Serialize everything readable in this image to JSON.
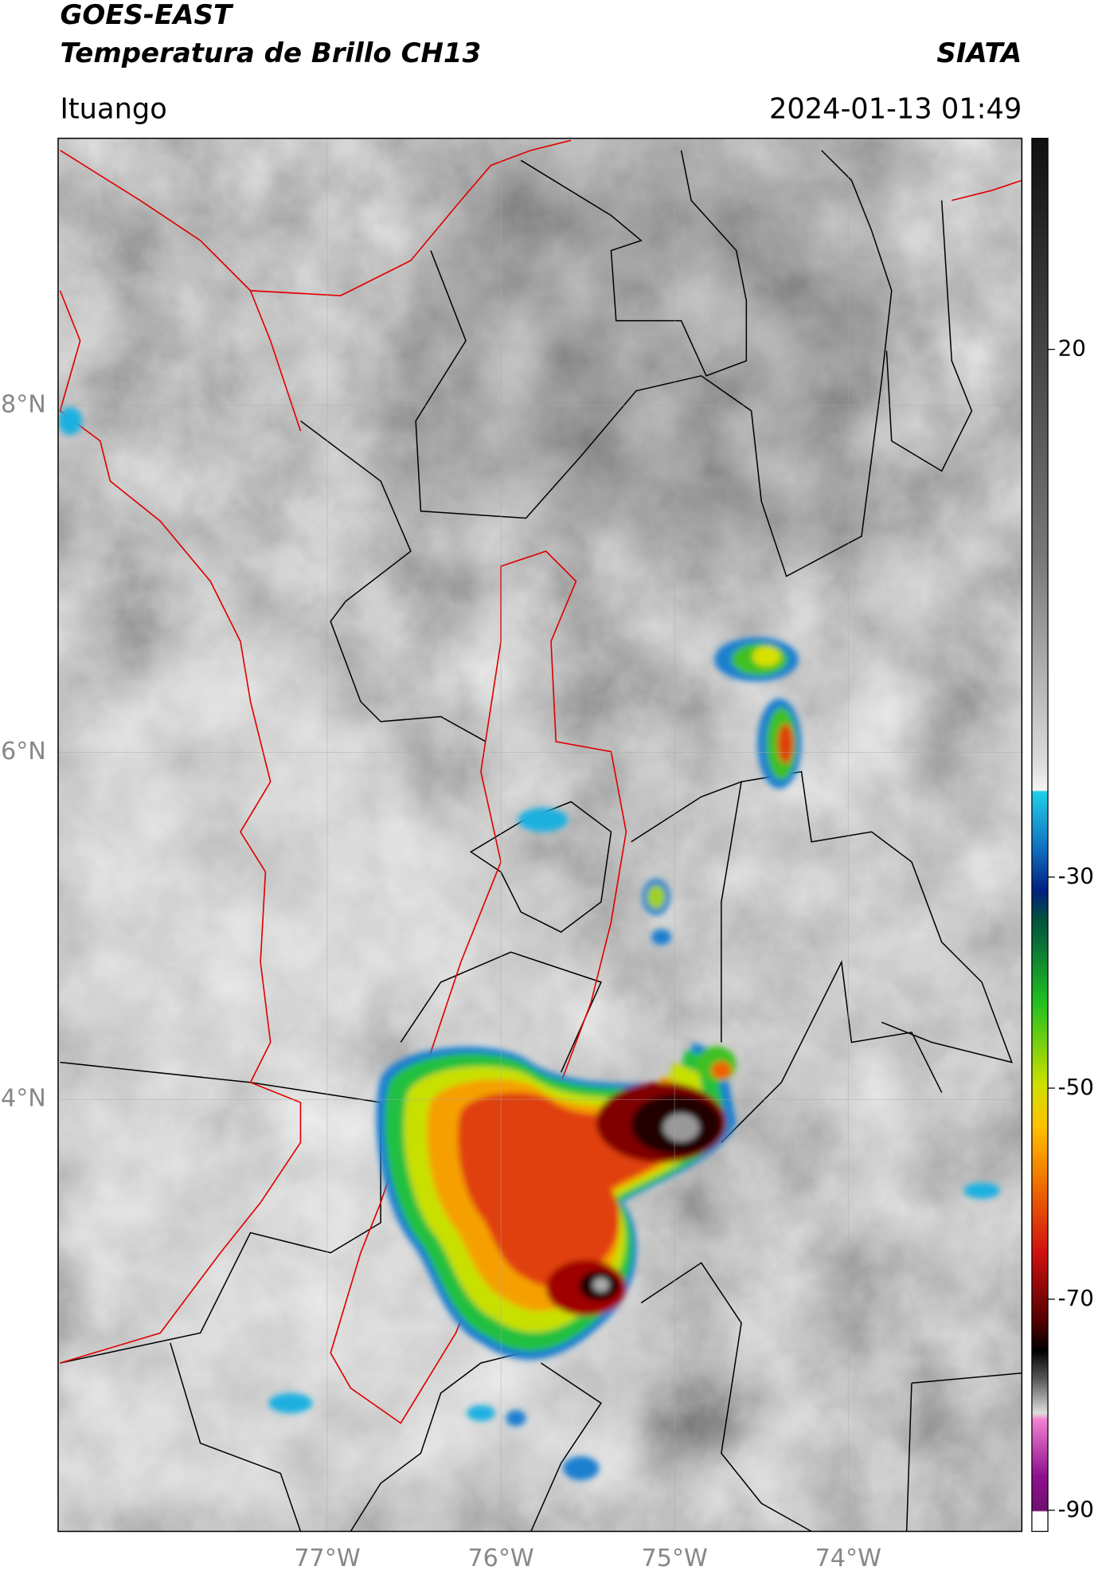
{
  "header": {
    "title": "GOES-EAST",
    "subtitle": "Temperatura de Brillo CH13",
    "source": "SIATA",
    "location": "Ituango",
    "datetime": "2024-01-13 01:49"
  },
  "map": {
    "lon_lim": [
      -78.55,
      -73.0
    ],
    "lat_lim": [
      1.51,
      9.54
    ],
    "xticks": [
      {
        "value": -77,
        "label": "77°W"
      },
      {
        "value": -76,
        "label": "76°W"
      },
      {
        "value": -75,
        "label": "75°W"
      },
      {
        "value": -74,
        "label": "74°W"
      }
    ],
    "yticks": [
      {
        "value": 8,
        "label": "8°N"
      },
      {
        "value": 6,
        "label": "6°N"
      },
      {
        "value": 4,
        "label": "4°N"
      }
    ]
  },
  "colorbar": {
    "lim": [
      -92,
      40
    ],
    "ticks": [
      20,
      -30,
      -50,
      -70,
      -90
    ]
  }
}
